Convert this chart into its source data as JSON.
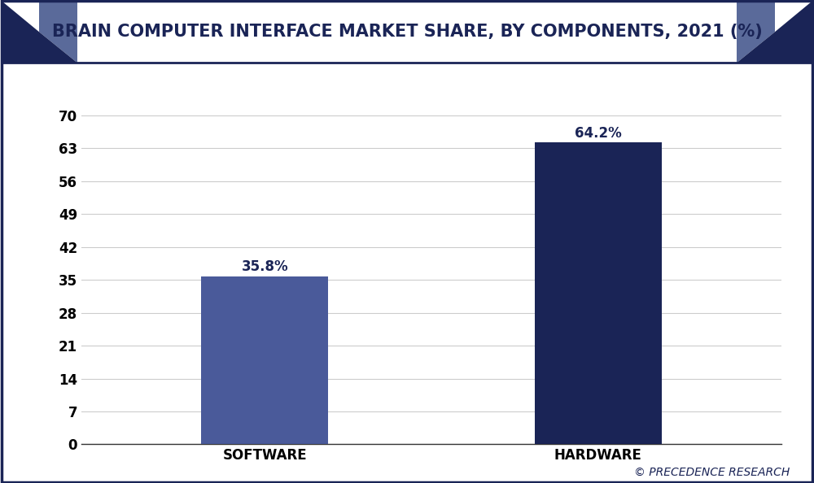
{
  "title": "BRAIN COMPUTER INTERFACE MARKET SHARE, BY COMPONENTS, 2021 (%)",
  "categories": [
    "SOFTWARE",
    "HARDWARE"
  ],
  "values": [
    35.8,
    64.2
  ],
  "labels": [
    "35.8%",
    "64.2%"
  ],
  "bar_colors": [
    "#4a5a9a",
    "#1a2456"
  ],
  "background_color": "#ffffff",
  "plot_bg_color": "#ffffff",
  "border_color": "#1a2456",
  "title_color": "#1a2456",
  "yticks": [
    0,
    7,
    14,
    21,
    28,
    35,
    42,
    49,
    56,
    63,
    70
  ],
  "ylim": [
    0,
    74
  ],
  "grid_color": "#cccccc",
  "watermark": "© PRECEDENCE RESEARCH",
  "title_fontsize": 15,
  "label_fontsize": 12,
  "tick_fontsize": 12,
  "watermark_fontsize": 10,
  "header_bg": "#ffffff",
  "header_border": "#1a2456",
  "tri_dark": "#1a2456",
  "tri_light": "#5a6a9a"
}
